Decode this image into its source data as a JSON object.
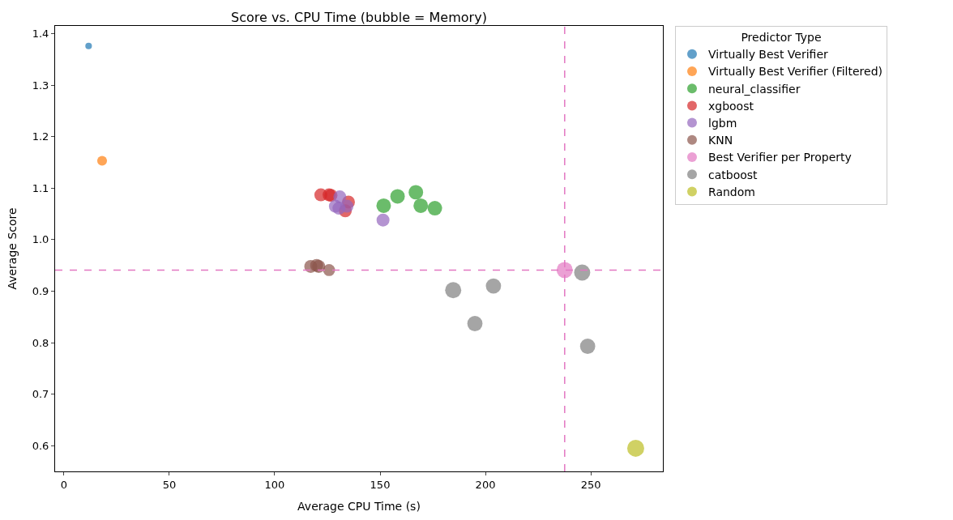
{
  "chart_data": {
    "type": "bubble",
    "title": "Score vs. CPU Time (bubble = Memory)",
    "xlabel": "Average CPU Time (s)",
    "ylabel": "Average Score",
    "legend_title": "Predictor Type",
    "xlim": [
      -4.2,
      284.2
    ],
    "xticks": [
      0,
      50,
      100,
      150,
      200,
      250
    ],
    "ylim": [
      0.55,
      1.415
    ],
    "yticks": [
      0.6,
      0.7,
      0.8,
      0.9,
      {
        "value": 1.0,
        "label": "1.0"
      },
      1.1,
      1.2,
      1.3,
      1.4
    ],
    "legend": "top right",
    "series": [
      {
        "name": "Virtually Best Verifier",
        "color": "#1f77b4",
        "x": [
          11.7
        ],
        "values": [
          1.376
        ],
        "sizes": [
          0.15
        ]
      },
      {
        "name": "Virtually Best Verifier (Filtered)",
        "color": "#ff7f0e",
        "x": [
          18.1
        ],
        "values": [
          1.153
        ],
        "sizes": [
          0.33
        ]
      },
      {
        "name": "neural_classifier",
        "color": "#2ca02c",
        "x": [
          151.7,
          158.3,
          167.0,
          169.3,
          176.0
        ],
        "values": [
          1.066,
          1.084,
          1.092,
          1.066,
          1.061
        ],
        "sizes": [
          0.73,
          0.73,
          0.73,
          0.73,
          0.73
        ]
      },
      {
        "name": "xgboost",
        "color": "#d62728",
        "x": [
          121.9,
          125.8,
          126.7,
          135.0,
          133.5
        ],
        "values": [
          1.087,
          1.087,
          1.086,
          1.073,
          1.056
        ],
        "sizes": [
          0.58,
          0.58,
          0.58,
          0.58,
          0.58
        ]
      },
      {
        "name": "lgbm",
        "color": "#9467bd",
        "x": [
          130.9,
          128.8,
          134.3,
          130.5,
          151.4
        ],
        "values": [
          1.083,
          1.065,
          1.065,
          1.061,
          1.038
        ],
        "sizes": [
          0.58,
          0.58,
          0.58,
          0.58,
          0.58
        ]
      },
      {
        "name": "KNN",
        "color": "#8c564b",
        "x": [
          117.1,
          119.9,
          120.9,
          125.8
        ],
        "values": [
          0.948,
          0.95,
          0.948,
          0.941
        ],
        "sizes": [
          0.58,
          0.58,
          0.58,
          0.5
        ]
      },
      {
        "name": "Best Verifier per Property",
        "color": "#e377c2",
        "x": [
          237.6
        ],
        "values": [
          0.941
        ],
        "sizes": [
          0.9
        ]
      },
      {
        "name": "catboost",
        "color": "#7f7f7f",
        "x": [
          184.7,
          203.8,
          195.0,
          245.9,
          248.5
        ],
        "values": [
          0.902,
          0.91,
          0.837,
          0.936,
          0.793
        ],
        "sizes": [
          0.9,
          0.8,
          0.8,
          0.9,
          0.8
        ]
      },
      {
        "name": "Random",
        "color": "#bcbd22",
        "x": [
          271.3
        ],
        "values": [
          0.595
        ],
        "sizes": [
          1
        ]
      }
    ],
    "ref_lines": [
      {
        "axis": "x",
        "value": 237.6,
        "color": "#e377c2",
        "line_style": "dashed"
      },
      {
        "axis": "y",
        "value": 0.941,
        "color": "#e377c2",
        "line_style": "dashed"
      }
    ]
  }
}
